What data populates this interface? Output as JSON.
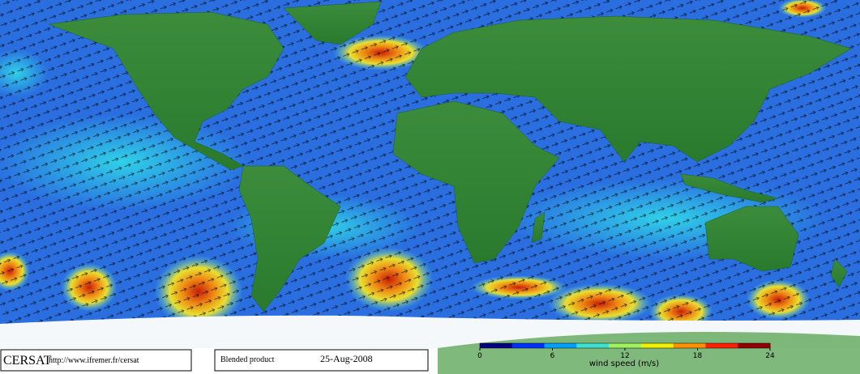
{
  "footer": {
    "logo": "CERSAT",
    "url": "http://www.ifremer.fr/cersat",
    "product": "Blended product",
    "date": "25-Aug-2008"
  },
  "colorbar": {
    "label": "wind speed (m/s)",
    "range": [
      0,
      24
    ],
    "ticks": [
      0,
      6,
      12,
      18,
      24
    ]
  }
}
